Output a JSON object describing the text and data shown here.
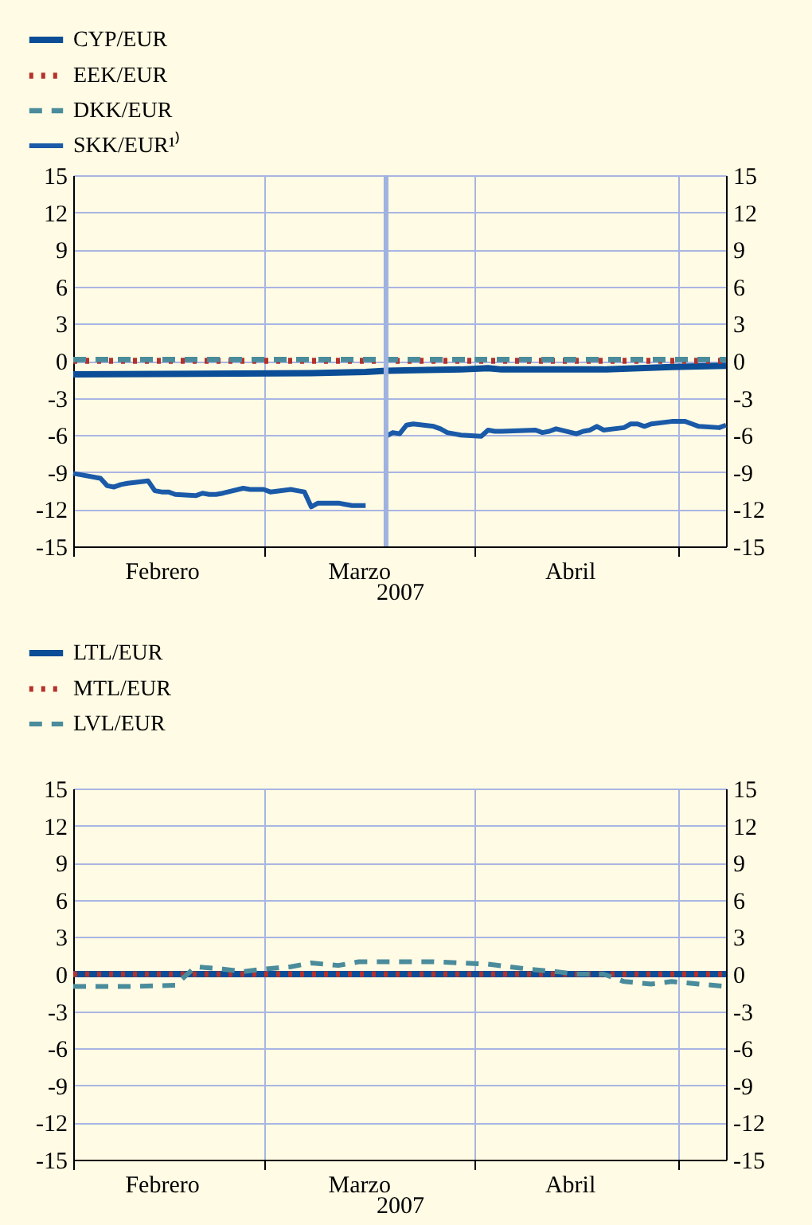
{
  "chart_data": [
    {
      "type": "line",
      "xlabel": "2007",
      "xlim": [
        "2007-02-01",
        "2007-05-08"
      ],
      "xticks": [
        {
          "value": "2007-02-01",
          "label": null
        },
        {
          "value": "2007-02-14",
          "label": "Febrero"
        },
        {
          "value": "2007-03-01",
          "label": null
        },
        {
          "value": "2007-03-15",
          "label": "Marzo"
        },
        {
          "value": "2007-04-01",
          "label": null
        },
        {
          "value": "2007-04-15",
          "label": "Abril"
        },
        {
          "value": "2007-05-01",
          "label": null
        }
      ],
      "ylim": [
        -15,
        15
      ],
      "yticks": [
        -15,
        -12,
        -9,
        -6,
        -3,
        0,
        3,
        6,
        9,
        12,
        15
      ],
      "y2lim": [
        -15,
        15
      ],
      "y2ticks": [
        -15,
        -12,
        -9,
        -6,
        -3,
        0,
        3,
        6,
        9,
        12,
        15
      ],
      "grid": true,
      "legend": "top left",
      "ref_lines": [
        {
          "axis": "x",
          "value": "2007-03-19",
          "color": "#9fb2e0"
        }
      ],
      "series": [
        {
          "name": "CYP/EUR",
          "color": "#0b4d96",
          "line_style": "solid",
          "x": [
            "2007-02-01",
            "2007-03-08",
            "2007-03-16",
            "2007-03-19",
            "2007-03-30",
            "2007-04-03",
            "2007-04-05",
            "2007-04-20",
            "2007-04-30",
            "2007-05-08"
          ],
          "values": [
            -1.1,
            -1.0,
            -0.9,
            -0.8,
            -0.7,
            -0.6,
            -0.7,
            -0.7,
            -0.5,
            -0.4
          ]
        },
        {
          "name": "EEK/EUR",
          "color": "#b5312b",
          "line_style": "dotted",
          "x": [
            "2007-02-01",
            "2007-05-08"
          ],
          "values": [
            0,
            0
          ]
        },
        {
          "name": "DKK/EUR",
          "color": "#4a8c9c",
          "line_style": "dashed",
          "x": [
            "2007-02-01",
            "2007-05-08"
          ],
          "values": [
            0.1,
            0.1
          ]
        },
        {
          "name": "SKK/EUR¹⁾",
          "color": "#1a5aa8",
          "line_style": "solid",
          "x": [
            "2007-02-01",
            "2007-02-02",
            "2007-02-05",
            "2007-02-06",
            "2007-02-07",
            "2007-02-08",
            "2007-02-09",
            "2007-02-12",
            "2007-02-13",
            "2007-02-14",
            "2007-02-15",
            "2007-02-16",
            "2007-02-19",
            "2007-02-20",
            "2007-02-21",
            "2007-02-22",
            "2007-02-23",
            "2007-02-26",
            "2007-02-27",
            "2007-02-28",
            "2007-03-01",
            "2007-03-02",
            "2007-03-05",
            "2007-03-06",
            "2007-03-07",
            "2007-03-08",
            "2007-03-09",
            "2007-03-12",
            "2007-03-13",
            "2007-03-14",
            "2007-03-16",
            "2007-03-17",
            "2007-03-19",
            "2007-03-20",
            "2007-03-21",
            "2007-03-22",
            "2007-03-23",
            "2007-03-26",
            "2007-03-27",
            "2007-03-28",
            "2007-03-29",
            "2007-03-30",
            "2007-04-02",
            "2007-04-03",
            "2007-04-04",
            "2007-04-05",
            "2007-04-10",
            "2007-04-11",
            "2007-04-12",
            "2007-04-13",
            "2007-04-16",
            "2007-04-17",
            "2007-04-18",
            "2007-04-19",
            "2007-04-20",
            "2007-04-23",
            "2007-04-24",
            "2007-04-25",
            "2007-04-26",
            "2007-04-27",
            "2007-04-30",
            "2007-05-02",
            "2007-05-03",
            "2007-05-04",
            "2007-05-07",
            "2007-05-08"
          ],
          "values": [
            -9.1,
            -9.2,
            -9.5,
            -10.1,
            -10.2,
            -10.0,
            -9.9,
            -9.7,
            -10.5,
            -10.6,
            -10.6,
            -10.8,
            -10.9,
            -10.7,
            -10.8,
            -10.8,
            -10.7,
            -10.3,
            -10.4,
            -10.4,
            -10.4,
            -10.6,
            -10.4,
            -10.5,
            -10.6,
            -11.8,
            -11.5,
            -11.5,
            -11.6,
            -11.7,
            -11.7,
            null,
            -6.1,
            -5.8,
            -5.9,
            -5.2,
            -5.1,
            -5.3,
            -5.5,
            -5.8,
            -5.9,
            -6.0,
            -6.1,
            -5.6,
            -5.7,
            -5.7,
            -5.6,
            -5.8,
            -5.7,
            -5.5,
            -5.9,
            -5.7,
            -5.6,
            -5.3,
            -5.6,
            -5.4,
            -5.1,
            -5.1,
            -5.3,
            -5.1,
            -4.9,
            -4.9,
            -5.1,
            -5.3,
            -5.4,
            -5.2
          ]
        }
      ]
    },
    {
      "type": "line",
      "xlabel": "2007",
      "xlim": [
        "2007-02-01",
        "2007-05-08"
      ],
      "xticks": [
        {
          "value": "2007-02-01",
          "label": null
        },
        {
          "value": "2007-02-14",
          "label": "Febrero"
        },
        {
          "value": "2007-03-01",
          "label": null
        },
        {
          "value": "2007-03-15",
          "label": "Marzo"
        },
        {
          "value": "2007-04-01",
          "label": null
        },
        {
          "value": "2007-04-15",
          "label": "Abril"
        },
        {
          "value": "2007-05-01",
          "label": null
        }
      ],
      "ylim": [
        -15,
        15
      ],
      "yticks": [
        -15,
        -12,
        -9,
        -6,
        -3,
        0,
        3,
        6,
        9,
        12,
        15
      ],
      "y2lim": [
        -15,
        15
      ],
      "y2ticks": [
        -15,
        -12,
        -9,
        -6,
        -3,
        0,
        3,
        6,
        9,
        12,
        15
      ],
      "grid": true,
      "legend": "top left",
      "series": [
        {
          "name": "LTL/EUR",
          "color": "#0b4d96",
          "line_style": "solid",
          "x": [
            "2007-02-01",
            "2007-05-08"
          ],
          "values": [
            0,
            0
          ]
        },
        {
          "name": "MTL/EUR",
          "color": "#b5312b",
          "line_style": "dotted",
          "x": [
            "2007-02-01",
            "2007-05-08"
          ],
          "values": [
            0,
            0
          ]
        },
        {
          "name": "LVL/EUR",
          "color": "#4a8c9c",
          "line_style": "dashed",
          "x": [
            "2007-02-01",
            "2007-02-09",
            "2007-02-16",
            "2007-02-19",
            "2007-02-23",
            "2007-02-26",
            "2007-03-01",
            "2007-03-05",
            "2007-03-08",
            "2007-03-12",
            "2007-03-15",
            "2007-03-21",
            "2007-03-26",
            "2007-03-30",
            "2007-04-03",
            "2007-04-06",
            "2007-04-09",
            "2007-04-13",
            "2007-04-16",
            "2007-04-20",
            "2007-04-23",
            "2007-04-27",
            "2007-04-30",
            "2007-05-04",
            "2007-05-08"
          ],
          "values": [
            -1.0,
            -1.0,
            -0.9,
            0.6,
            0.4,
            0.2,
            0.4,
            0.6,
            0.9,
            0.7,
            1.0,
            1.0,
            1.0,
            0.9,
            0.8,
            0.6,
            0.4,
            0.2,
            0.0,
            0.0,
            -0.6,
            -0.8,
            -0.6,
            -0.8,
            -1.0
          ]
        }
      ]
    }
  ]
}
